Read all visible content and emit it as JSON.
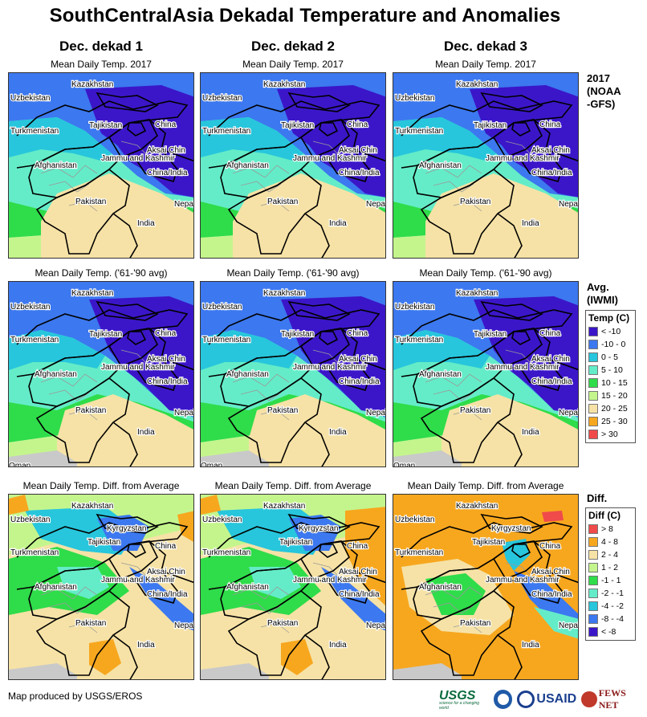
{
  "title": "SouthCentralAsia Dekadal Temperature and Anomalies",
  "columns": [
    "Dec. dekad 1",
    "Dec. dekad 2",
    "Dec. dekad 3"
  ],
  "rows": [
    {
      "subtitle": "Mean Daily Temp. 2017",
      "label_lines": [
        "2017",
        "(NOAA",
        "-GFS)"
      ]
    },
    {
      "subtitle": "Mean Daily Temp. ('61-'90 avg)",
      "label_lines": [
        "Avg.",
        "(IWMI)"
      ]
    },
    {
      "subtitle": "Mean Daily Temp. Diff. from Average",
      "label_lines": [
        "Diff."
      ]
    }
  ],
  "map_labels": {
    "kazakhstan": "Kazakhstan",
    "uzbekistan": "Uzbekistan",
    "kyrgyzstan": "Kyrgyzstan",
    "tajikistan": "Tajikistan",
    "turkmenistan": "Turkmenistan",
    "china": "China",
    "afghanistan": "Afghanistan",
    "aksai_chin": "Aksai Chin",
    "jammu": "Jammu and Kashmir",
    "china_india": "China/India",
    "pakistan": "Pakistan",
    "nepal": "Nepal",
    "india": "India",
    "oman": "Oman"
  },
  "temp_legend": {
    "title": "Temp (C)",
    "items": [
      {
        "label": "< -10",
        "color": "#3b16c9"
      },
      {
        "label": "-10 - 0",
        "color": "#3c78ef"
      },
      {
        "label": "0 - 5",
        "color": "#27c6dc"
      },
      {
        "label": "5 - 10",
        "color": "#64ecc8"
      },
      {
        "label": "10 - 15",
        "color": "#2fdc4a"
      },
      {
        "label": "15 - 20",
        "color": "#c4f58d"
      },
      {
        "label": "20 - 25",
        "color": "#f6e2a6"
      },
      {
        "label": "25 - 30",
        "color": "#f7a71e"
      },
      {
        "label": "> 30",
        "color": "#f04a4a"
      }
    ]
  },
  "diff_legend": {
    "title": "Diff (C)",
    "items": [
      {
        "label": "> 8",
        "color": "#f04a4a"
      },
      {
        "label": "4 - 8",
        "color": "#f7a71e"
      },
      {
        "label": "2 - 4",
        "color": "#f6e2a6"
      },
      {
        "label": "1 - 2",
        "color": "#c4f58d"
      },
      {
        "label": "-1 - 1",
        "color": "#2fdc4a"
      },
      {
        "label": "-2 - -1",
        "color": "#64ecc8"
      },
      {
        "label": "-4 - -2",
        "color": "#27c6dc"
      },
      {
        "label": "-8 - -4",
        "color": "#3c78ef"
      },
      {
        "label": "< -8",
        "color": "#3b16c9"
      }
    ]
  },
  "credit": "Map produced by USGS/EROS",
  "logos": {
    "usgs": "USGS",
    "usgs_tagline": "science for a changing world",
    "usaid": "USAID",
    "fews": "FEWS NET"
  }
}
